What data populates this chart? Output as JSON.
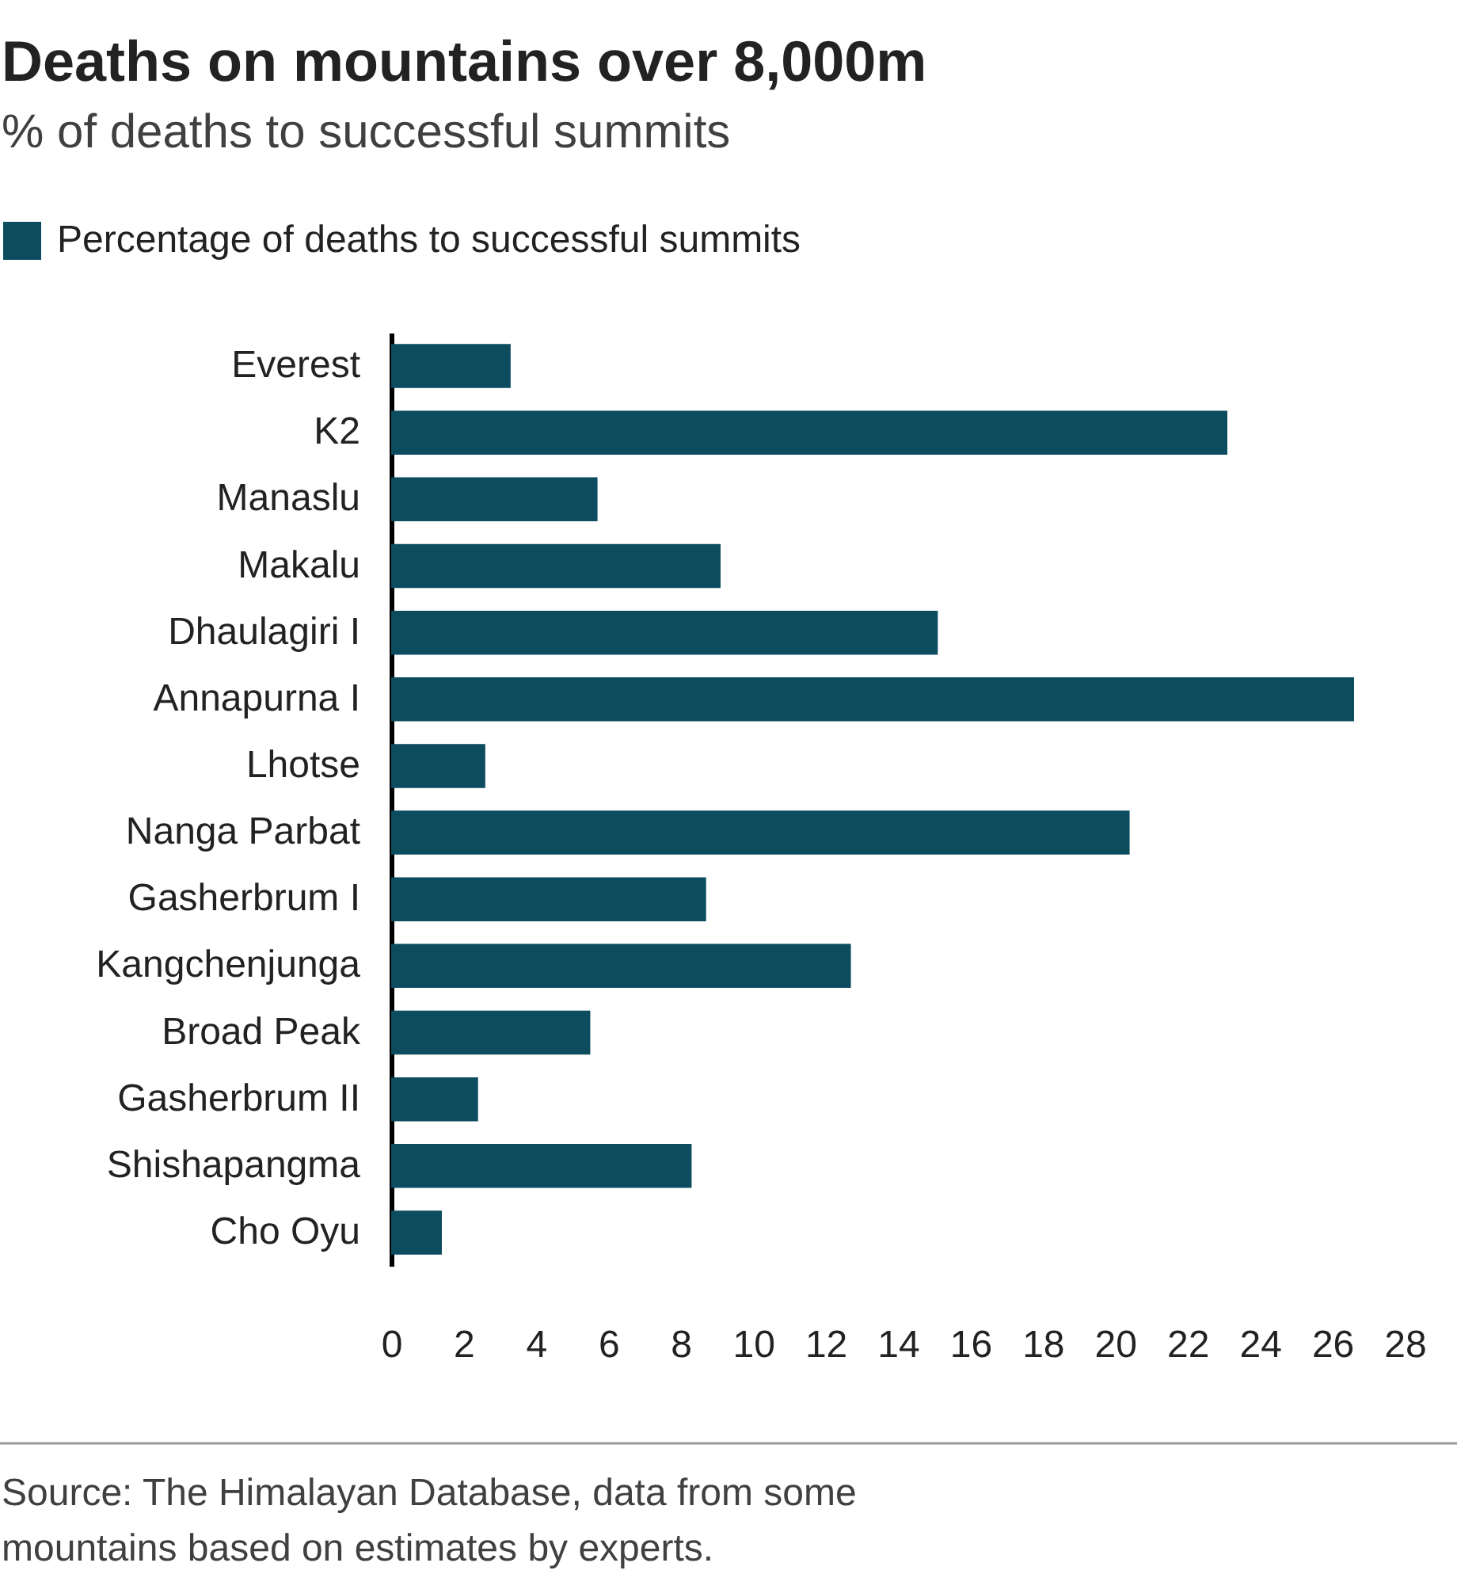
{
  "chart_data": {
    "type": "bar",
    "orientation": "horizontal",
    "title": "Deaths on mountains over 8,000m",
    "subtitle": "% of deaths to successful summits",
    "categories": [
      "Everest",
      "K2",
      "Manaslu",
      "Makalu",
      "Dhaulagiri I",
      "Annapurna I",
      "Lhotse",
      "Nanga Parbat",
      "Gasherbrum I",
      "Kangchenjunga",
      "Broad Peak",
      "Gasherbrum II",
      "Shishapangma",
      "Cho Oyu"
    ],
    "series": [
      {
        "name": "Percentage of deaths to successful summits",
        "color": "#0d4b5e",
        "values": [
          3.3,
          23.1,
          5.7,
          9.1,
          15.1,
          26.6,
          2.6,
          20.4,
          8.7,
          12.7,
          5.5,
          2.4,
          8.3,
          1.4
        ]
      }
    ],
    "xlim": [
      0,
      28
    ],
    "xticks": [
      0,
      2,
      4,
      6,
      8,
      10,
      12,
      14,
      16,
      18,
      20,
      22,
      24,
      26,
      28
    ],
    "grid": false,
    "legend": "top left",
    "annotations": [
      "Source: The Himalayan Database, data from some mountains based on estimates by experts."
    ]
  }
}
